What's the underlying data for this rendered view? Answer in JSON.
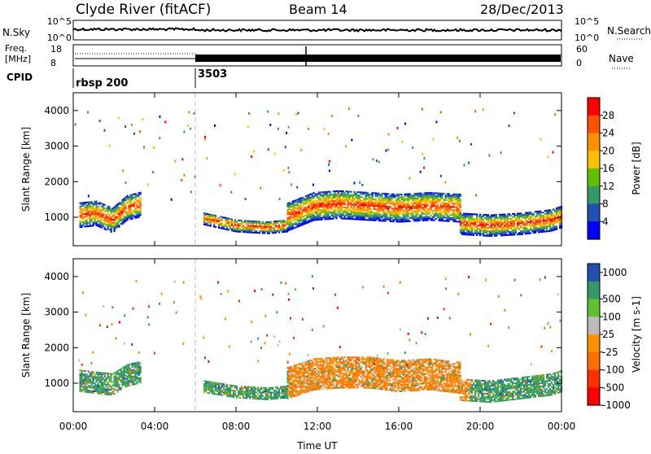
{
  "header": {
    "station": "Clyde River (fitACF)",
    "beam": "Beam 14",
    "date": "28/Dec/2013"
  },
  "top_panels": {
    "nsky_label": "N.Sky",
    "nsearch_label": "N.Search",
    "left_ticks": [
      "10^5",
      "10^0"
    ],
    "right_ticks": [
      "10^5",
      "10^0"
    ],
    "freq_label_1": "Freq.",
    "freq_label_2": "[MHz]",
    "freq_ticks": [
      "18",
      "8"
    ],
    "nave_ticks": [
      "60",
      "0"
    ],
    "nave_label": "Nave",
    "cpid_label": "CPID",
    "cpid_entries": [
      {
        "label": "rbsp 200",
        "start_hour": 0
      },
      {
        "label": "3503",
        "start_hour": 6
      }
    ]
  },
  "chart_data": [
    {
      "type": "heatmap",
      "name": "power",
      "ylabel": "Slant Range [km]",
      "xlim": [
        0,
        24
      ],
      "ylim": [
        200,
        4500
      ],
      "yticks": [
        1000,
        2000,
        3000,
        4000
      ],
      "colorbar": {
        "label": "Power [dB]",
        "ticks": [
          "28",
          "24",
          "20",
          "16",
          "12",
          "8",
          "4"
        ],
        "colors": [
          "#ff0000",
          "#ff5000",
          "#ff9000",
          "#ffc000",
          "#60c000",
          "#339966",
          "#2050b0",
          "#0000ff"
        ]
      },
      "bands": [
        {
          "x": [
            0.3,
            1.1,
            1.9,
            2.6,
            3.3
          ],
          "center": [
            1050,
            1100,
            900,
            1250,
            1350
          ],
          "width": 700
        },
        {
          "x": [
            6.4,
            8.0,
            9.5,
            10.5
          ],
          "center": [
            950,
            750,
            700,
            750
          ],
          "width": 350
        },
        {
          "x": [
            10.5,
            11.8,
            13.0,
            14.5,
            16.0,
            17.5,
            19.0
          ],
          "center": [
            1000,
            1300,
            1350,
            1300,
            1250,
            1300,
            1250
          ],
          "width": 800
        },
        {
          "x": [
            19.0,
            20.5,
            22.0,
            23.5,
            24.0
          ],
          "center": [
            800,
            750,
            800,
            900,
            1000
          ],
          "width": 600
        }
      ]
    },
    {
      "type": "heatmap",
      "name": "velocity",
      "ylabel": "Slant Range [km]",
      "xlabel": "Time UT",
      "xlim": [
        0,
        24
      ],
      "ylim": [
        200,
        4500
      ],
      "yticks": [
        1000,
        2000,
        3000,
        4000
      ],
      "xticks": [
        "00:00",
        "04:00",
        "08:00",
        "12:00",
        "16:00",
        "20:00",
        "00:00"
      ],
      "colorbar": {
        "label": "Velocity [m s-1]",
        "ticks": [
          "1000",
          "500",
          "100",
          "25",
          "-25",
          "-100",
          "-500",
          "-1000"
        ],
        "colors": [
          "#2050b0",
          "#339966",
          "#60c030",
          "#bbbbbb",
          "#ff9000",
          "#ff7000",
          "#ff3000",
          "#ff0000"
        ]
      },
      "bands": [
        {
          "x": [
            0.3,
            1.1,
            1.9,
            2.6,
            3.3
          ],
          "center": [
            1050,
            1000,
            950,
            1200,
            1300
          ],
          "width": 600
        },
        {
          "x": [
            6.4,
            8.0,
            9.5,
            10.5
          ],
          "center": [
            900,
            750,
            700,
            750
          ],
          "width": 350
        },
        {
          "x": [
            10.5,
            11.8,
            13.0,
            14.5,
            16.0,
            17.5,
            19.0
          ],
          "center": [
            1000,
            1250,
            1300,
            1300,
            1200,
            1250,
            1150
          ],
          "width": 900
        },
        {
          "x": [
            19.0,
            20.5,
            22.0,
            23.5,
            24.0
          ],
          "center": [
            800,
            750,
            850,
            950,
            1050
          ],
          "width": 600
        }
      ]
    }
  ]
}
